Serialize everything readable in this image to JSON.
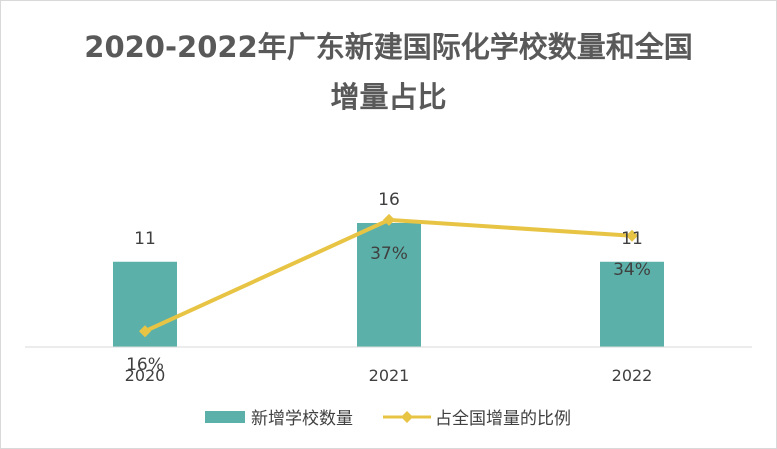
{
  "title_line1": "2020-2022年广东新建国际化学校数量和全国",
  "title_line2": "增量占比",
  "chart_data": {
    "type": "bar",
    "categories": [
      "2020",
      "2021",
      "2022"
    ],
    "series": [
      {
        "name": "新增学校数量",
        "type": "bar",
        "values": [
          11,
          16,
          11
        ],
        "labels": [
          "11",
          "16",
          "11"
        ],
        "color": "#5bb1a9"
      },
      {
        "name": "占全国增量的比例",
        "type": "line",
        "marker": "diamond",
        "values": [
          16,
          37,
          34
        ],
        "labels": [
          "16%",
          "37%",
          "34%"
        ],
        "color": "#e8c445"
      }
    ],
    "legend_position": "bottom",
    "grid": false
  }
}
